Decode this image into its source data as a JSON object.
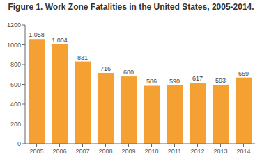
{
  "chart_data": {
    "type": "bar",
    "title": "Figure 1. Work Zone Fatalities in the United States, 2005-2014.",
    "categories": [
      "2005",
      "2006",
      "2007",
      "2008",
      "2009",
      "2010",
      "2011",
      "2012",
      "2013",
      "2014"
    ],
    "values": [
      1058,
      1004,
      831,
      716,
      680,
      586,
      590,
      617,
      593,
      669
    ],
    "value_labels": [
      "1,058",
      "1,004",
      "831",
      "716",
      "680",
      "586",
      "590",
      "617",
      "593",
      "669"
    ],
    "data_labels": true,
    "color": "#F5A033",
    "ylim": [
      0,
      1200
    ],
    "yticks": [
      0,
      200,
      400,
      600,
      800,
      1000,
      1200
    ],
    "grid": false
  }
}
